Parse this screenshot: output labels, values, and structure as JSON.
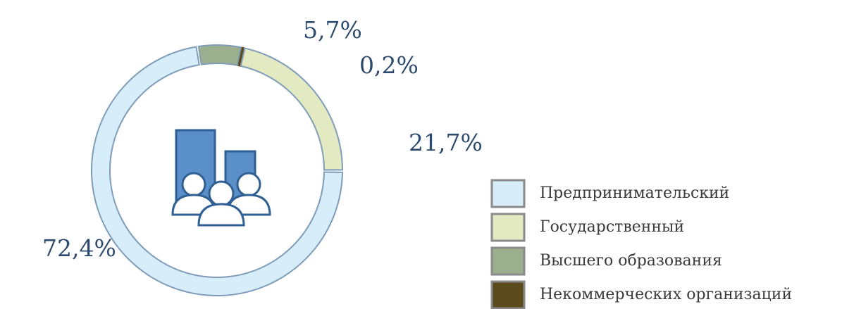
{
  "chart_data": {
    "type": "donut",
    "categories": [
      "Предпринимательский",
      "Государственный",
      "Высшего образования",
      "Некоммерческих организаций"
    ],
    "values": [
      72.4,
      21.7,
      5.7,
      0.2
    ],
    "value_labels": [
      "72,4%",
      "21,7%",
      "5,7%",
      "0,2%"
    ],
    "colors": [
      "#d7eefa",
      "#e3eac1",
      "#9bae8d",
      "#5b4a1c"
    ]
  }
}
